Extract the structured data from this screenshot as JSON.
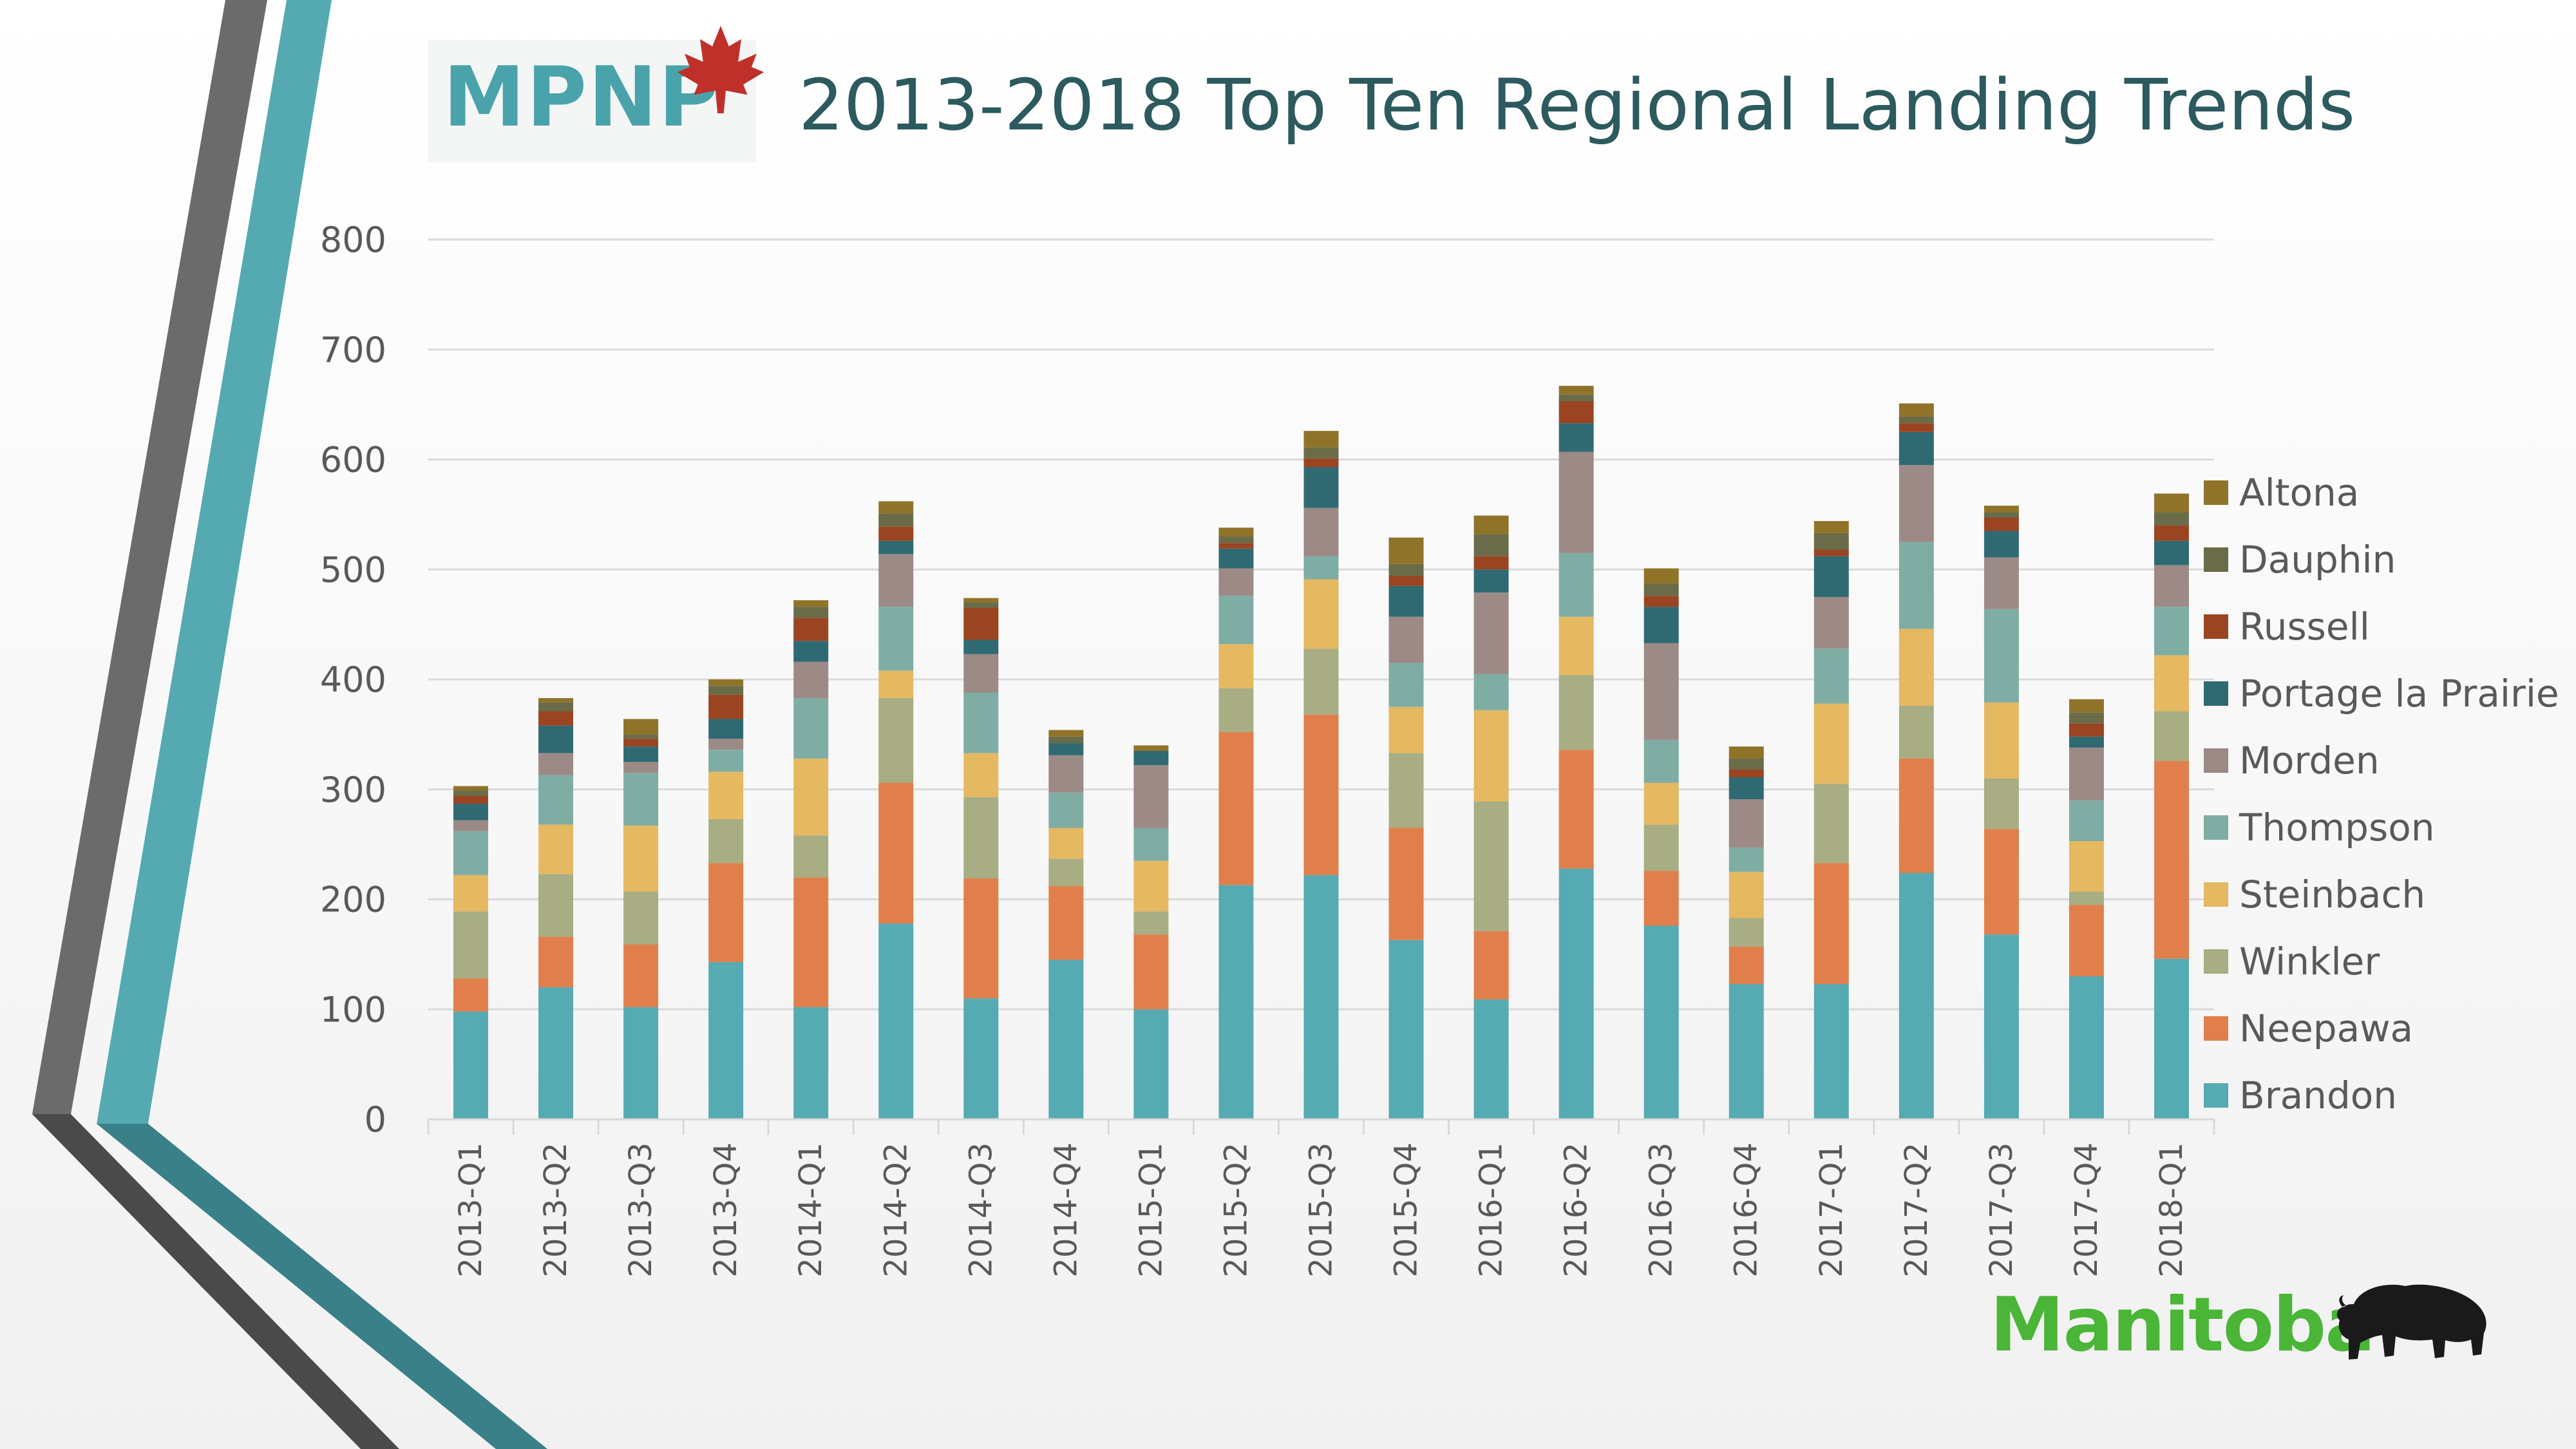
{
  "logo": {
    "text": "MPNP",
    "leaf_icon": "maple-leaf-icon"
  },
  "title": "2013-2018 Top Ten Regional Landing Trends",
  "footer_logo": {
    "text": "Manitoba",
    "icon": "bison-icon"
  },
  "colors": {
    "Brandon": "#56aab2",
    "Neepawa": "#e07f4b",
    "Winkler": "#a8ad83",
    "Steinbach": "#e5b862",
    "Thompson": "#7fada4",
    "Morden": "#9c8a86",
    "Portage la Prairie": "#2f6a73",
    "Russell": "#9a4421",
    "Dauphin": "#6a6b48",
    "Altona": "#8f7329"
  },
  "chart_data": {
    "type": "bar",
    "stacked": true,
    "title": "2013-2018 Top Ten Regional Landing Trends",
    "xlabel": "",
    "ylabel": "",
    "ylim": [
      0,
      800
    ],
    "yticks": [
      0,
      100,
      200,
      300,
      400,
      500,
      600,
      700,
      800
    ],
    "grid": true,
    "legend_position": "right",
    "categories": [
      "2013-Q1",
      "2013-Q2",
      "2013-Q3",
      "2013-Q4",
      "2014-Q1",
      "2014-Q2",
      "2014-Q3",
      "2014-Q4",
      "2015-Q1",
      "2015-Q2",
      "2015-Q3",
      "2015-Q4",
      "2016-Q1",
      "2016-Q2",
      "2016-Q3",
      "2016-Q4",
      "2017-Q1",
      "2017-Q2",
      "2017-Q3",
      "2017-Q4",
      "2018-Q1"
    ],
    "series": [
      {
        "name": "Brandon",
        "values": [
          98,
          120,
          102,
          143,
          102,
          178,
          110,
          145,
          100,
          213,
          222,
          163,
          109,
          228,
          176,
          123,
          123,
          224,
          168,
          130,
          146
        ]
      },
      {
        "name": "Neepawa",
        "values": [
          30,
          46,
          57,
          90,
          118,
          128,
          109,
          67,
          68,
          139,
          146,
          102,
          62,
          108,
          50,
          34,
          110,
          104,
          96,
          65,
          180
        ]
      },
      {
        "name": "Winkler",
        "values": [
          61,
          57,
          48,
          40,
          38,
          77,
          74,
          25,
          21,
          40,
          60,
          68,
          118,
          68,
          42,
          26,
          72,
          48,
          46,
          12,
          45
        ]
      },
      {
        "name": "Steinbach",
        "values": [
          33,
          45,
          60,
          43,
          70,
          25,
          40,
          28,
          46,
          40,
          63,
          42,
          83,
          53,
          38,
          42,
          73,
          70,
          69,
          46,
          51
        ]
      },
      {
        "name": "Thompson",
        "values": [
          40,
          45,
          48,
          20,
          55,
          58,
          55,
          32,
          30,
          44,
          21,
          40,
          33,
          58,
          39,
          22,
          50,
          79,
          85,
          37,
          44
        ]
      },
      {
        "name": "Morden",
        "values": [
          10,
          20,
          10,
          10,
          33,
          48,
          35,
          34,
          57,
          25,
          44,
          42,
          74,
          92,
          88,
          44,
          47,
          70,
          47,
          48,
          38
        ]
      },
      {
        "name": "Portage la Prairie",
        "values": [
          15,
          25,
          14,
          18,
          19,
          12,
          13,
          11,
          13,
          18,
          37,
          28,
          21,
          26,
          33,
          20,
          37,
          30,
          24,
          10,
          22
        ]
      },
      {
        "name": "Russell",
        "values": [
          7,
          13,
          7,
          22,
          21,
          13,
          29,
          0,
          0,
          5,
          8,
          9,
          12,
          20,
          10,
          7,
          6,
          8,
          12,
          12,
          14
        ]
      },
      {
        "name": "Dauphin",
        "values": [
          5,
          8,
          4,
          8,
          10,
          12,
          5,
          6,
          0,
          6,
          10,
          11,
          20,
          6,
          11,
          10,
          15,
          6,
          5,
          10,
          12
        ]
      },
      {
        "name": "Altona",
        "values": [
          4,
          4,
          14,
          6,
          6,
          11,
          4,
          6,
          5,
          8,
          15,
          24,
          17,
          8,
          14,
          11,
          11,
          12,
          6,
          12,
          17
        ]
      }
    ]
  }
}
